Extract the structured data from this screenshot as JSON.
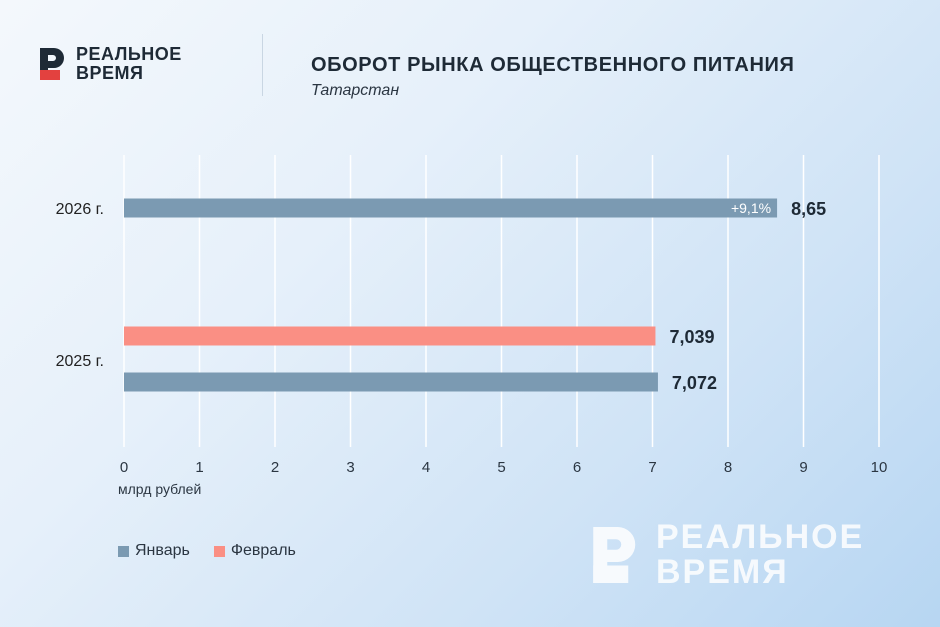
{
  "brand": {
    "line1": "РЕАЛЬНОЕ",
    "line2": "ВРЕМЯ",
    "mark_color": "#e3413f"
  },
  "header": {
    "title": "ОБОРОТ РЫНКА ОБЩЕСТВЕННОГО ПИТАНИЯ",
    "subtitle": "Татарстан"
  },
  "chart_data": {
    "type": "bar",
    "orientation": "horizontal",
    "categories": [
      "2026 г.",
      "2025 г."
    ],
    "series": [
      {
        "name": "Январь",
        "color": "#7b9ab2",
        "values": [
          8.65,
          7.072
        ],
        "labels": [
          "8,65",
          "7,072"
        ]
      },
      {
        "name": "Февраль",
        "color": "#fa8f84",
        "values": [
          null,
          7.039
        ],
        "labels": [
          null,
          "7,039"
        ]
      }
    ],
    "annotations": [
      {
        "category": "2026 г.",
        "series": "Январь",
        "text": "+9,1%"
      }
    ],
    "xlim": [
      0,
      10
    ],
    "xticks": [
      "0",
      "1",
      "2",
      "3",
      "4",
      "5",
      "6",
      "7",
      "8",
      "9",
      "10"
    ],
    "xlabel": "млрд рублей",
    "grid": "vertical",
    "legend": "bottom-left"
  }
}
